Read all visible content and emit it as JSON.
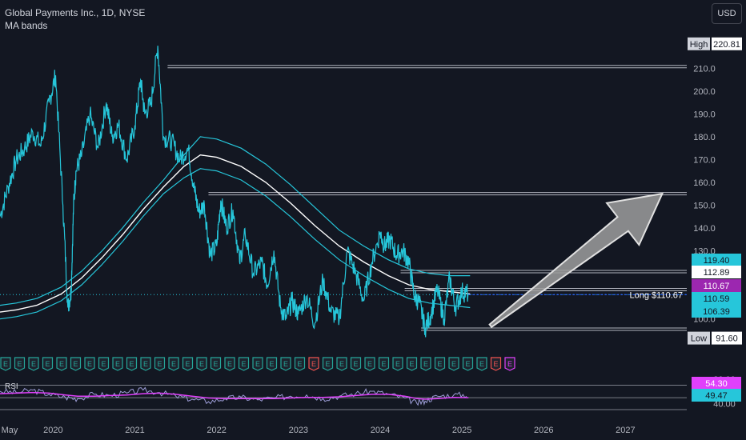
{
  "header": {
    "title": "Global Payments Inc., 1D, NYSE",
    "indicator": "MA bands",
    "currency": "USD"
  },
  "colors": {
    "background": "#131722",
    "price": "#26c6da",
    "ma_center": "#ffffff",
    "ma_band": "#26c6da",
    "level_line": "#b2b5be",
    "rsi": "#9c9cd6",
    "rsi_ma": "#e040fb",
    "earnings": "#26a69a",
    "earnings_down": "#ef5350",
    "earnings_next": "#e040fb",
    "long_line": "#2962ff",
    "arrow_fill": "#9e9e9e"
  },
  "chart_data": {
    "type": "line",
    "x_axis": {
      "labels": [
        "May",
        "2020",
        "2021",
        "2022",
        "2023",
        "2024",
        "2025",
        "2026",
        "2027"
      ],
      "positions": [
        2019.4,
        2020.0,
        2021.0,
        2022.0,
        2023.0,
        2024.0,
        2025.0,
        2026.0,
        2027.0
      ],
      "range": [
        2019.35,
        2027.75
      ]
    },
    "y_axis": {
      "ticks": [
        100,
        110,
        120,
        130,
        140,
        150,
        160,
        170,
        180,
        190,
        200,
        210
      ],
      "range": [
        89,
        226
      ]
    },
    "price_series": {
      "name": "",
      "x": [
        2019.35,
        2019.45,
        2019.55,
        2019.65,
        2019.75,
        2019.85,
        2019.95,
        2020.03,
        2020.12,
        2020.18,
        2020.22,
        2020.25,
        2020.28,
        2020.35,
        2020.45,
        2020.55,
        2020.65,
        2020.72,
        2020.8,
        2020.9,
        2021.0,
        2021.07,
        2021.12,
        2021.2,
        2021.28,
        2021.35,
        2021.45,
        2021.55,
        2021.65,
        2021.72,
        2021.78,
        2021.85,
        2021.92,
        2022.0,
        2022.05,
        2022.12,
        2022.2,
        2022.28,
        2022.35,
        2022.45,
        2022.55,
        2022.62,
        2022.7,
        2022.78,
        2022.85,
        2022.92,
        2023.0,
        2023.1,
        2023.2,
        2023.3,
        2023.4,
        2023.5,
        2023.6,
        2023.7,
        2023.8,
        2023.9,
        2024.0,
        2024.05,
        2024.12,
        2024.2,
        2024.28,
        2024.35,
        2024.42,
        2024.48,
        2024.55,
        2024.62,
        2024.7,
        2024.78,
        2024.85,
        2024.92,
        2025.0,
        2025.08
      ],
      "y": [
        145,
        158,
        170,
        175,
        182,
        176,
        195,
        207,
        150,
        105,
        112,
        150,
        165,
        172,
        190,
        175,
        195,
        180,
        185,
        170,
        185,
        205,
        190,
        195,
        220,
        180,
        178,
        170,
        175,
        158,
        147,
        150,
        128,
        132,
        152,
        140,
        148,
        125,
        137,
        120,
        125,
        115,
        130,
        105,
        100,
        108,
        102,
        110,
        98,
        117,
        103,
        100,
        130,
        120,
        108,
        125,
        138,
        132,
        135,
        128,
        130,
        125,
        110,
        107,
        96,
        102,
        113,
        100,
        118,
        105,
        112,
        111
      ],
      "last_price": 110.67
    },
    "ma_band_series": {
      "name": "MA bands",
      "x": [
        2019.35,
        2019.55,
        2019.8,
        2020.1,
        2020.35,
        2020.6,
        2020.85,
        2021.1,
        2021.35,
        2021.6,
        2021.8,
        2022.0,
        2022.3,
        2022.6,
        2022.9,
        2023.2,
        2023.5,
        2023.8,
        2024.1,
        2024.35,
        2024.6,
        2024.85,
        2025.1
      ],
      "center": [
        103,
        104,
        106,
        111,
        118,
        127,
        137,
        148,
        158,
        167,
        172,
        171,
        167,
        160,
        151,
        141,
        132,
        125,
        119,
        115,
        113,
        112,
        111
      ],
      "upper": [
        106,
        107,
        109,
        114,
        121,
        130,
        140,
        151,
        161,
        172,
        180,
        179,
        175,
        168,
        159,
        149,
        139,
        132,
        126,
        122,
        120,
        119,
        119
      ],
      "lower": [
        100,
        101,
        103,
        108,
        115,
        124,
        134,
        145,
        155,
        162,
        166,
        165,
        161,
        154,
        145,
        135,
        126,
        119,
        113,
        109,
        107,
        106,
        105
      ]
    },
    "horizontal_levels": [
      210.8,
      155.0,
      120.8,
      112.89,
      95.5
    ],
    "price_labels": [
      {
        "text": "High",
        "value": "220.81",
        "y": 220.81
      },
      {
        "text": "",
        "value": "119.40",
        "y": 119.4
      },
      {
        "text": "",
        "value": "112.89",
        "y": 112.89
      },
      {
        "text": "",
        "value": "110.67",
        "y": 110.67
      },
      {
        "text": "",
        "value": "110.59",
        "y": 110.59
      },
      {
        "text": "",
        "value": "106.39",
        "y": 106.39
      },
      {
        "text": "Low",
        "value": "91.60",
        "y": 91.6
      }
    ],
    "annotations": {
      "long_label": "Long $110.67",
      "arrow": {
        "from": [
          2025.35,
          97
        ],
        "to": [
          2027.45,
          155
        ]
      }
    },
    "earnings": {
      "markers": [
        "E",
        "E",
        "E",
        "E",
        "E",
        "E",
        "E",
        "E",
        "E",
        "E",
        "E",
        "E",
        "E",
        "E",
        "E",
        "E",
        "E",
        "E",
        "E",
        "E",
        "E",
        "E",
        "E",
        "E",
        "E",
        "E",
        "E",
        "E",
        "E",
        "E",
        "E",
        "E",
        "E",
        "E",
        "E",
        "E",
        "E"
      ],
      "down_indices": [
        22,
        35
      ],
      "next_index": 36
    },
    "rsi": {
      "label": "RSI",
      "tick_label": "80.00",
      "bottom_tick": "40.00",
      "range": [
        30,
        85
      ],
      "x": [
        2019.35,
        2019.55,
        2019.75,
        2019.95,
        2020.15,
        2020.3,
        2020.5,
        2020.7,
        2020.9,
        2021.1,
        2021.3,
        2021.5,
        2021.7,
        2021.9,
        2022.1,
        2022.3,
        2022.5,
        2022.7,
        2022.9,
        2023.1,
        2023.3,
        2023.5,
        2023.7,
        2023.9,
        2024.1,
        2024.3,
        2024.45,
        2024.55,
        2024.7,
        2024.9,
        2025.08
      ],
      "values": [
        60,
        58,
        62,
        55,
        50,
        48,
        55,
        53,
        57,
        62,
        58,
        52,
        47,
        43,
        48,
        50,
        46,
        49,
        52,
        54,
        48,
        52,
        56,
        60,
        55,
        49,
        40,
        44,
        52,
        54,
        54.3
      ],
      "ma_values": [
        56,
        57,
        58,
        57,
        54,
        52,
        52,
        53,
        54,
        56,
        57,
        55,
        52,
        49,
        48,
        48,
        48,
        48,
        49,
        50,
        50,
        51,
        53,
        55,
        55,
        52,
        48,
        47,
        48,
        50,
        49.47
      ],
      "labels": [
        {
          "value": "54.30",
          "y": 54.3
        },
        {
          "value": "49.47",
          "y": 49.47
        }
      ]
    }
  }
}
